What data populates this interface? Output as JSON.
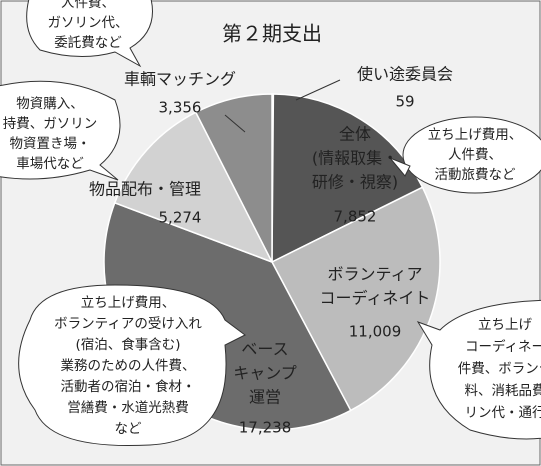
{
  "chart_data": {
    "type": "pie",
    "title": "第２期支出",
    "categories": [
      [
        "使い途委員会"
      ],
      [
        "全体",
        "(情報取集・",
        "研修・視察)"
      ],
      [
        "ボランティア",
        "コーディネイト"
      ],
      [
        "ベース",
        "キャンプ",
        "運営"
      ],
      [
        "物品配布・管理"
      ],
      [
        "車輌マッチング"
      ]
    ],
    "values": [
      59,
      7852,
      11009,
      17238,
      5274,
      3356
    ],
    "value_labels": [
      "59",
      "7,852",
      "11,009",
      "17,238",
      "5,274",
      "3,356"
    ],
    "colors": [
      "#e4e4e4",
      "#555555",
      "#bcbcbc",
      "#6c6c6c",
      "#d2d2d2",
      "#8d8d8d"
    ],
    "annotations": [
      {
        "lines": [
          "人件費、",
          "ガソリン代、",
          "委託費など"
        ]
      },
      {
        "lines": [
          "物資購入、",
          "持費、ガソリン",
          "物資置き場・",
          "車場代など"
        ]
      },
      {
        "lines": [
          "立ち上げ費用、",
          "人件費、",
          "活動旅費など"
        ]
      },
      {
        "lines": [
          "立ち上げ費用、",
          "ボランティアの受け入れ",
          "(宿泊、食事含む)",
          "業務のための人件費、",
          "活動者の宿泊・食材・",
          "営繕費・水道光熱費",
          "など"
        ]
      },
      {
        "lines": [
          "立ち上げ",
          "コーディネー",
          "件費、ボランテ",
          "料、消耗品費",
          "リン代・通行"
        ]
      }
    ]
  }
}
